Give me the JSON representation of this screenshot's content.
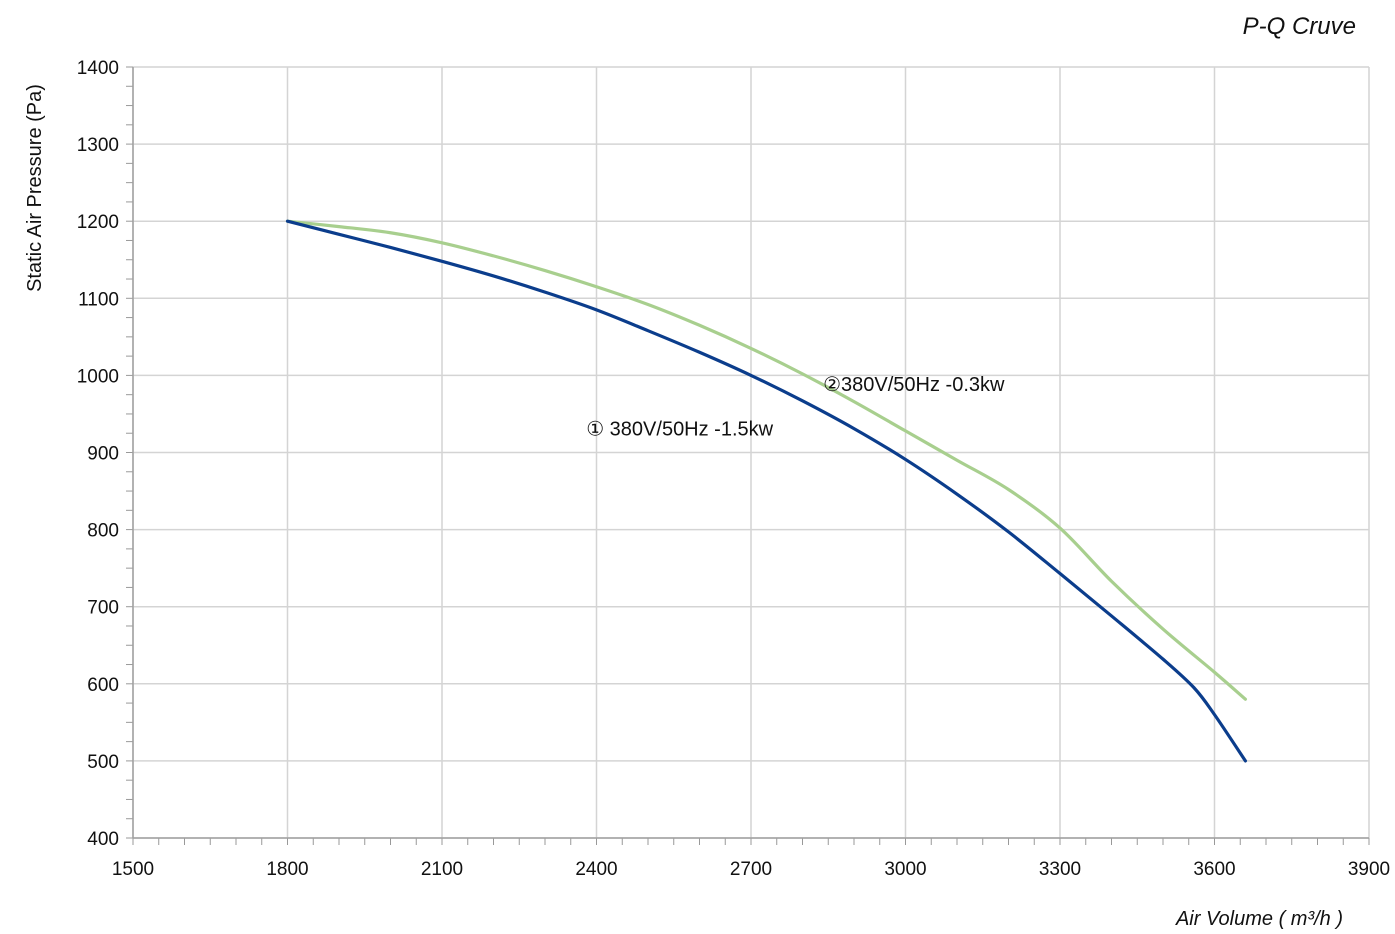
{
  "chart_data": {
    "type": "line",
    "title": "P-Q Cruve",
    "xlabel": "Air Volume ( m³/h )",
    "ylabel": "Static Air Pressure  (Pa)",
    "xlim": [
      1500,
      3900
    ],
    "ylim": [
      400,
      1400
    ],
    "x_ticks": [
      1500,
      1800,
      2100,
      2400,
      2700,
      3000,
      3300,
      3600,
      3900
    ],
    "y_ticks": [
      400,
      500,
      600,
      700,
      800,
      900,
      1000,
      1100,
      1200,
      1300,
      1400
    ],
    "grid": true,
    "legend": "none",
    "series": [
      {
        "name": "① 380V/50Hz -1.5kw",
        "color": "#0b3d8c",
        "x": [
          1800,
          1900,
          2000,
          2100,
          2200,
          2300,
          2400,
          2500,
          2600,
          2700,
          2800,
          2900,
          3000,
          3100,
          3200,
          3300,
          3400,
          3500,
          3560,
          3600,
          3660
        ],
        "y": [
          1200,
          1183,
          1166,
          1148,
          1129,
          1108,
          1085,
          1058,
          1030,
          1000,
          967,
          931,
          891,
          846,
          797,
          743,
          688,
          632,
          595,
          560,
          500
        ]
      },
      {
        "name": "②380V/50Hz -0.3kw",
        "color": "#a8cf8e",
        "x": [
          1800,
          1900,
          2000,
          2100,
          2200,
          2300,
          2400,
          2500,
          2600,
          2700,
          2800,
          2900,
          3000,
          3100,
          3200,
          3300,
          3400,
          3500,
          3600,
          3660
        ],
        "y": [
          1200,
          1193,
          1185,
          1172,
          1155,
          1136,
          1115,
          1092,
          1065,
          1035,
          1002,
          966,
          928,
          890,
          852,
          802,
          733,
          671,
          615,
          580
        ]
      }
    ],
    "annotations": [
      {
        "text": "①  380V/50Hz -1.5kw",
        "x": 2380,
        "y": 922
      },
      {
        "text": "②380V/50Hz -0.3kw",
        "x": 2840,
        "y": 980
      }
    ]
  }
}
